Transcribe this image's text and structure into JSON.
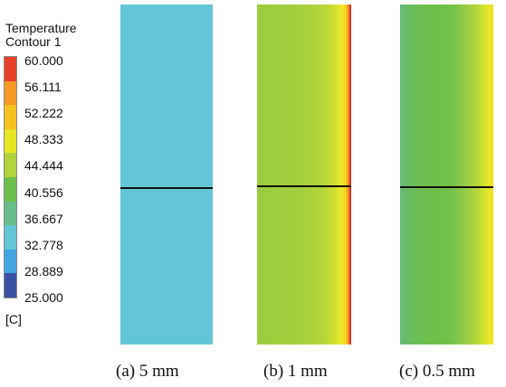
{
  "legend": {
    "title_line1": "Temperature",
    "title_line2": "Contour 1",
    "unit": "[C]",
    "ticks": [
      "60.000",
      "56.111",
      "52.222",
      "48.333",
      "44.444",
      "40.556",
      "36.667",
      "32.778",
      "28.889",
      "25.000"
    ],
    "colors": [
      "#e8412b",
      "#f59a23",
      "#f6c21f",
      "#e6e623",
      "#b2d33b",
      "#6dbf4c",
      "#69bd8a",
      "#63c6d6",
      "#41a6df",
      "#3a51a4"
    ]
  },
  "panels": [
    {
      "caption": "(a) 5 mm"
    },
    {
      "caption": "(b) 1 mm"
    },
    {
      "caption": "(c) 0.5 mm"
    }
  ]
}
